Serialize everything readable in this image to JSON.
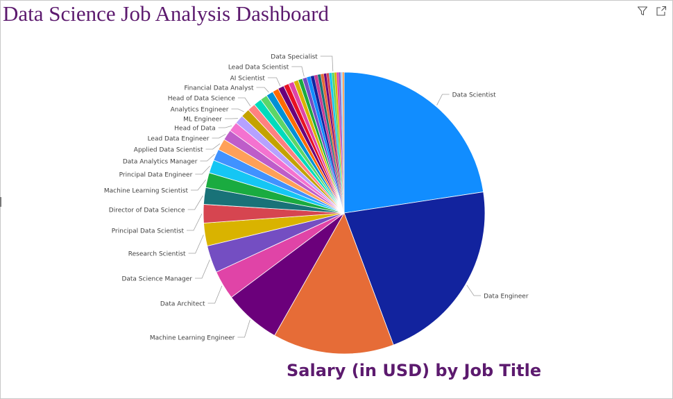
{
  "dashboard": {
    "title": "Data Science Job Analysis Dashboard",
    "filter_icon": "filter-icon",
    "focus_icon": "focus-mode-icon"
  },
  "chart_data": {
    "type": "pie",
    "title": "Salary (in USD) by Job Title",
    "label_color": "#404040",
    "leader_color": "#a0a0a0",
    "slices": [
      {
        "label": "Data Scientist",
        "value": 22.4,
        "color": "#118dff"
      },
      {
        "label": "Data Engineer",
        "value": 21.5,
        "color": "#12239e"
      },
      {
        "label": "",
        "value": 13.8,
        "color": "#e66c37"
      },
      {
        "label": "Machine Learning Engineer",
        "value": 6.5,
        "color": "#6b007b"
      },
      {
        "label": "Data Architect",
        "value": 3.3,
        "color": "#e044a7"
      },
      {
        "label": "Data Science Manager",
        "value": 3.1,
        "color": "#744ec2"
      },
      {
        "label": "Research Scientist",
        "value": 2.6,
        "color": "#d9b300"
      },
      {
        "label": "Principal Data Scientist",
        "value": 2.1,
        "color": "#d64550"
      },
      {
        "label": "Director of Data Science",
        "value": 1.9,
        "color": "#197278"
      },
      {
        "label": "Machine Learning Scientist",
        "value": 1.7,
        "color": "#1aab40"
      },
      {
        "label": "Principal Data Engineer",
        "value": 1.5,
        "color": "#15c6f4"
      },
      {
        "label": "Data Analytics Manager",
        "value": 1.3,
        "color": "#4092ff"
      },
      {
        "label": "Applied Data Scientist",
        "value": 1.3,
        "color": "#ffa058"
      },
      {
        "label": "Lead Data Engineer",
        "value": 1.2,
        "color": "#be5dc9"
      },
      {
        "label": "Head of Data",
        "value": 1.1,
        "color": "#f472d0"
      },
      {
        "label": "ML Engineer",
        "value": 1.0,
        "color": "#b5a1ff"
      },
      {
        "label": "Analytics Engineer",
        "value": 1.0,
        "color": "#c4a200"
      },
      {
        "label": "Head of Data Science",
        "value": 0.9,
        "color": "#ff8080"
      },
      {
        "label": "",
        "value": 0.9,
        "color": "#00dbbc"
      },
      {
        "label": "",
        "value": 0.8,
        "color": "#5bd667"
      },
      {
        "label": "Financial Data Analyst",
        "value": 0.8,
        "color": "#0091d5"
      },
      {
        "label": "",
        "value": 0.7,
        "color": "#ff6b00"
      },
      {
        "label": "AI Scientist",
        "value": 0.7,
        "color": "#6b007b"
      },
      {
        "label": "",
        "value": 0.6,
        "color": "#e81123"
      },
      {
        "label": "",
        "value": 0.6,
        "color": "#e044a7"
      },
      {
        "label": "",
        "value": 0.55,
        "color": "#d9b300"
      },
      {
        "label": "",
        "value": 0.5,
        "color": "#1aab40"
      },
      {
        "label": "Lead Data Scientist",
        "value": 0.5,
        "color": "#744ec2"
      },
      {
        "label": "",
        "value": 0.45,
        "color": "#118dff"
      },
      {
        "label": "",
        "value": 0.4,
        "color": "#12239e"
      },
      {
        "label": "",
        "value": 0.4,
        "color": "#c83d95"
      },
      {
        "label": "",
        "value": 0.35,
        "color": "#197278"
      },
      {
        "label": "",
        "value": 0.35,
        "color": "#e66c37"
      },
      {
        "label": "",
        "value": 0.3,
        "color": "#6b007b"
      },
      {
        "label": "",
        "value": 0.3,
        "color": "#d64550"
      },
      {
        "label": "",
        "value": 0.3,
        "color": "#15c6f4"
      },
      {
        "label": "Data Specialist",
        "value": 0.3,
        "color": "#5bd667"
      },
      {
        "label": "",
        "value": 0.25,
        "color": "#d9b300"
      },
      {
        "label": "",
        "value": 0.25,
        "color": "#e044a7"
      },
      {
        "label": "",
        "value": 0.2,
        "color": "#744ec2"
      },
      {
        "label": "",
        "value": 0.2,
        "color": "#a0d1ff"
      },
      {
        "label": "",
        "value": 0.2,
        "color": "#ffa058"
      }
    ]
  }
}
